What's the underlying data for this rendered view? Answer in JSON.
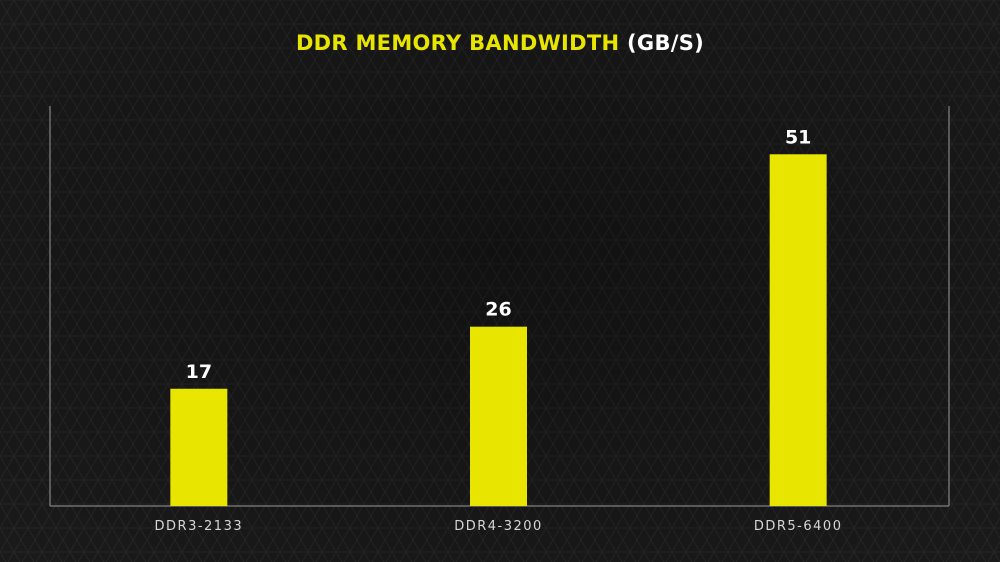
{
  "chart_data": {
    "type": "bar",
    "title": "DDR MEMORY BANDWIDTH",
    "title_unit": "(GB/S)",
    "xlabel": "",
    "ylabel": "",
    "categories": [
      "DDR3-2133",
      "DDR4-3200",
      "DDR5-6400"
    ],
    "values": [
      17,
      26,
      51
    ],
    "value_labels": [
      "17",
      "26",
      "51"
    ],
    "ylim": [
      0,
      58
    ],
    "grid": false,
    "legend": "none"
  },
  "colors": {
    "background": "#1a1a1a",
    "bar": "#e8e500",
    "title_accent": "#e8e500",
    "text": "#ffffff",
    "axis": "#9a9a9a"
  }
}
